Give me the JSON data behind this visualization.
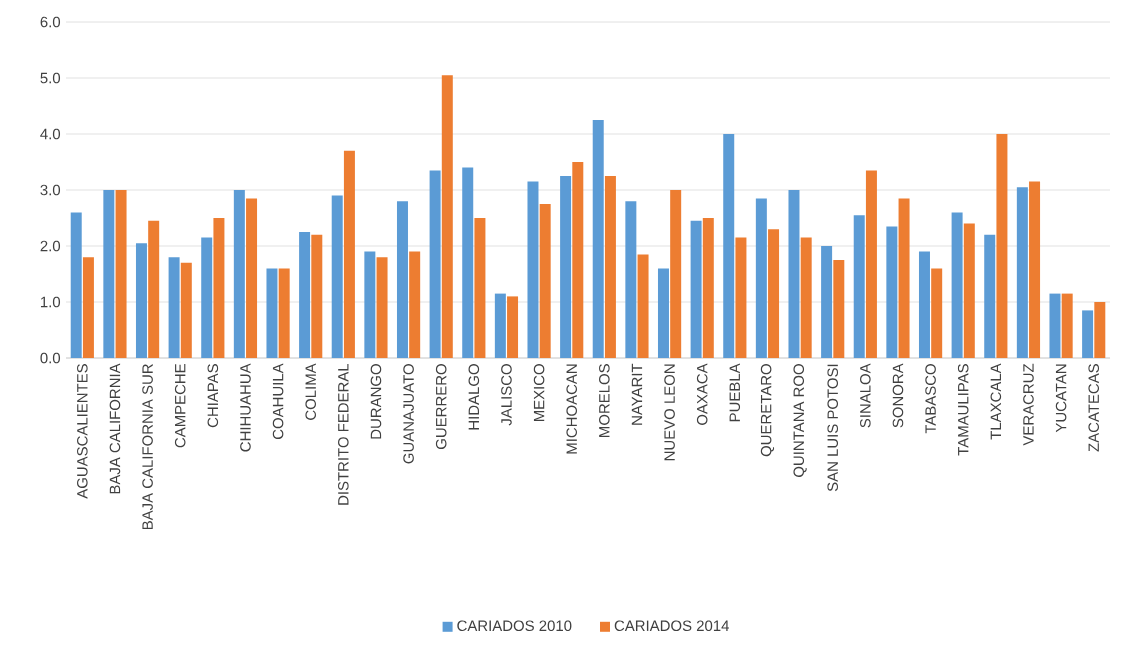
{
  "chart_data": {
    "type": "bar",
    "categories": [
      "AGUASCALIENTES",
      "BAJA CALIFORNIA",
      "BAJA CALIFORNIA SUR",
      "CAMPECHE",
      "CHIAPAS",
      "CHIHUAHUA",
      "COAHUILA",
      "COLIMA",
      "DISTRITO FEDERAL",
      "DURANGO",
      "GUANAJUATO",
      "GUERRERO",
      "HIDALGO",
      "JALISCO",
      "MEXICO",
      "MICHOACAN",
      "MORELOS",
      "NAYARIT",
      "NUEVO LEON",
      "OAXACA",
      "PUEBLA",
      "QUERETARO",
      "QUINTANA ROO",
      "SAN  LUIS POTOSI",
      "SINALOA",
      "SONORA",
      "TABASCO",
      "TAMAULIPAS",
      "TLAXCALA",
      "VERACRUZ",
      "YUCATAN",
      "ZACATECAS"
    ],
    "series": [
      {
        "name": "CARIADOS 2010",
        "color": "#5b9bd5",
        "values": [
          2.6,
          3.0,
          2.05,
          1.8,
          2.15,
          3.0,
          1.6,
          2.25,
          2.9,
          1.9,
          2.8,
          3.35,
          3.4,
          1.15,
          3.15,
          3.25,
          4.25,
          2.8,
          1.6,
          2.45,
          4.0,
          2.85,
          3.0,
          2.0,
          2.55,
          2.35,
          1.9,
          2.6,
          2.2,
          3.05,
          1.15,
          0.85
        ]
      },
      {
        "name": "CARIADOS 2014",
        "color": "#ed7d31",
        "values": [
          1.8,
          3.0,
          2.45,
          1.7,
          2.5,
          2.85,
          1.6,
          2.2,
          3.7,
          1.8,
          1.9,
          5.05,
          2.5,
          1.1,
          2.75,
          3.5,
          3.25,
          1.85,
          3.0,
          2.5,
          2.15,
          2.3,
          2.15,
          1.75,
          3.35,
          2.85,
          1.6,
          2.4,
          4.0,
          3.15,
          1.15,
          1.0
        ]
      }
    ],
    "ylim": [
      0,
      6
    ],
    "yticks": [
      {
        "value": 0,
        "label": "0.0"
      },
      {
        "value": 1,
        "label": "1.0"
      },
      {
        "value": 2,
        "label": "2.0"
      },
      {
        "value": 3,
        "label": "3.0"
      },
      {
        "value": 4,
        "label": "4.0"
      },
      {
        "value": 5,
        "label": "5.0"
      },
      {
        "value": 6,
        "label": "6.0"
      }
    ],
    "grid": "y",
    "legend": "bottom"
  }
}
